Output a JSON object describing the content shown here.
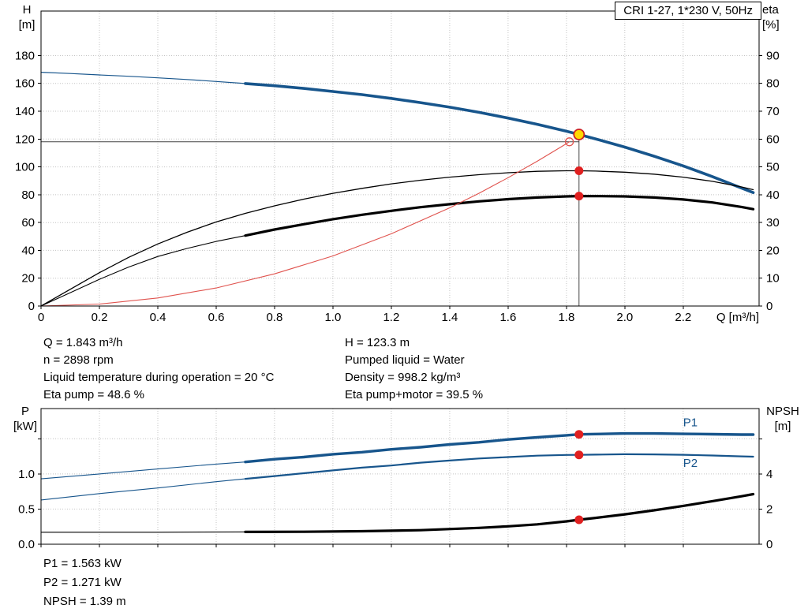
{
  "title": "CRI 1-27, 1*230 V, 50Hz",
  "operating_data": {
    "q": "Q = 1.843 m³/h",
    "n": "n = 2898 rpm",
    "temperature": "Liquid temperature during operation = 20 °C",
    "eta_pump": "Eta pump = 48.6 %",
    "h": "H = 123.3 m",
    "liquid": "Pumped liquid = Water",
    "density": "Density = 998.2 kg/m³",
    "eta_pump_motor": "Eta pump+motor = 39.5 %",
    "p1": "P1 = 1.563 kW",
    "p2": "P2 = 1.271 kW",
    "npsh": "NPSH = 1.39 m"
  },
  "chart_data": [
    {
      "type": "line",
      "title": "CRI 1-27, 1*230 V, 50Hz",
      "xlabel": "Q [m³/h]",
      "yaxis_left_label": [
        "H",
        "[m]"
      ],
      "yaxis_right_label": [
        "eta",
        "[%]"
      ],
      "xlim": [
        0,
        2.46
      ],
      "ylim_left": [
        0,
        212
      ],
      "ylim_right": [
        0,
        106
      ],
      "grid": true,
      "xticks": {
        "values": [
          0,
          0.2,
          0.4,
          0.6,
          0.8,
          1.0,
          1.2,
          1.4,
          1.6,
          1.8,
          2.0,
          2.2
        ],
        "labels": [
          "0",
          "0.2",
          "0.4",
          "0.6",
          "0.8",
          "1.0",
          "1.2",
          "1.4",
          "1.6",
          "1.8",
          "2.0",
          "2.2"
        ]
      },
      "yticks_left": {
        "values": [
          0,
          20,
          40,
          60,
          80,
          100,
          120,
          140,
          160,
          180
        ],
        "labels": [
          "0",
          "20",
          "40",
          "60",
          "80",
          "100",
          "120",
          "140",
          "160",
          "180"
        ]
      },
      "yticks_right": {
        "values": [
          0,
          10,
          20,
          30,
          40,
          50,
          60,
          70,
          80,
          90
        ],
        "labels": [
          "0",
          "10",
          "20",
          "30",
          "40",
          "50",
          "60",
          "70",
          "80",
          "90"
        ]
      },
      "series": [
        {
          "name": "pump-curve-low",
          "axis": "left",
          "color": "#17558c",
          "width": 1.2,
          "points": [
            [
              0,
              168
            ],
            [
              0.1,
              167.1
            ],
            [
              0.2,
              166.1
            ],
            [
              0.3,
              165.1
            ],
            [
              0.4,
              164
            ],
            [
              0.5,
              162.8
            ],
            [
              0.6,
              161.4
            ],
            [
              0.7,
              159.9
            ]
          ]
        },
        {
          "name": "pump-curve",
          "axis": "left",
          "color": "#17558c",
          "width": 3.6,
          "points": [
            [
              0.7,
              159.9
            ],
            [
              0.8,
              158.3
            ],
            [
              0.9,
              156.4
            ],
            [
              1,
              154.2
            ],
            [
              1.1,
              151.9
            ],
            [
              1.2,
              149.2
            ],
            [
              1.3,
              146.2
            ],
            [
              1.4,
              142.9
            ],
            [
              1.5,
              139.2
            ],
            [
              1.6,
              135.1
            ],
            [
              1.7,
              130.6
            ],
            [
              1.8,
              125.6
            ],
            [
              1.843,
              123.3
            ],
            [
              1.9,
              120.1
            ],
            [
              2,
              114.2
            ],
            [
              2.1,
              107.7
            ],
            [
              2.2,
              100.7
            ],
            [
              2.3,
              93
            ],
            [
              2.4,
              84.8
            ],
            [
              2.44,
              81.5
            ]
          ]
        },
        {
          "name": "eta-pump-curve",
          "axis": "right",
          "color": "#000000",
          "width": 1.3,
          "points": [
            [
              0,
              0
            ],
            [
              0.1,
              6
            ],
            [
              0.2,
              12
            ],
            [
              0.3,
              17.5
            ],
            [
              0.4,
              22.3
            ],
            [
              0.5,
              26.5
            ],
            [
              0.6,
              30.2
            ],
            [
              0.7,
              33.3
            ],
            [
              0.8,
              36
            ],
            [
              0.9,
              38.4
            ],
            [
              1,
              40.5
            ],
            [
              1.1,
              42.3
            ],
            [
              1.2,
              43.9
            ],
            [
              1.3,
              45.2
            ],
            [
              1.4,
              46.3
            ],
            [
              1.5,
              47.2
            ],
            [
              1.6,
              47.9
            ],
            [
              1.7,
              48.4
            ],
            [
              1.8,
              48.6
            ],
            [
              1.843,
              48.6
            ],
            [
              1.9,
              48.5
            ],
            [
              2,
              48.1
            ],
            [
              2.1,
              47.4
            ],
            [
              2.2,
              46.3
            ],
            [
              2.3,
              44.8
            ],
            [
              2.4,
              42.8
            ],
            [
              2.44,
              41.8
            ]
          ]
        },
        {
          "name": "eta-pump-motor-curve-low",
          "axis": "right",
          "color": "#000000",
          "width": 1.1,
          "points": [
            [
              0,
              0
            ],
            [
              0.1,
              4.8
            ],
            [
              0.2,
              9.6
            ],
            [
              0.3,
              14
            ],
            [
              0.4,
              17.8
            ],
            [
              0.5,
              20.7
            ],
            [
              0.6,
              23.2
            ],
            [
              0.7,
              25.3
            ]
          ]
        },
        {
          "name": "eta-pump-motor-curve",
          "axis": "right",
          "color": "#000000",
          "width": 3.2,
          "points": [
            [
              0.7,
              25.3
            ],
            [
              0.8,
              27.5
            ],
            [
              0.9,
              29.4
            ],
            [
              1,
              31.2
            ],
            [
              1.1,
              32.8
            ],
            [
              1.2,
              34.2
            ],
            [
              1.3,
              35.5
            ],
            [
              1.4,
              36.6
            ],
            [
              1.5,
              37.6
            ],
            [
              1.6,
              38.4
            ],
            [
              1.7,
              39
            ],
            [
              1.8,
              39.4
            ],
            [
              1.843,
              39.5
            ],
            [
              1.9,
              39.5
            ],
            [
              2,
              39.4
            ],
            [
              2.1,
              39
            ],
            [
              2.2,
              38.3
            ],
            [
              2.3,
              37.2
            ],
            [
              2.4,
              35.6
            ],
            [
              2.44,
              34.8
            ]
          ]
        },
        {
          "name": "system-curve",
          "axis": "left",
          "color": "#e0534e",
          "width": 1.1,
          "points": [
            [
              0,
              0
            ],
            [
              0.2,
              1.4
            ],
            [
              0.4,
              5.8
            ],
            [
              0.6,
              13
            ],
            [
              0.8,
              23.1
            ],
            [
              1,
              36
            ],
            [
              1.2,
              51.9
            ],
            [
              1.4,
              70.6
            ],
            [
              1.5,
              81
            ],
            [
              1.6,
              92.2
            ],
            [
              1.7,
              104.1
            ],
            [
              1.8,
              116.7
            ],
            [
              1.81,
              118
            ]
          ]
        }
      ],
      "guides": [
        {
          "type": "v",
          "x": 1.843,
          "y0": 0,
          "y1": 123.3,
          "axis": "left",
          "color": "#444444",
          "width": 1
        },
        {
          "type": "h",
          "y": 118,
          "x0": 0,
          "x1": 1.843,
          "axis": "left",
          "color": "#444444",
          "width": 1
        }
      ],
      "markers": [
        {
          "name": "requested-duty-point",
          "x": 1.81,
          "y": 118,
          "axis": "left",
          "r": 5,
          "fill": "none",
          "stroke": "#e0534e",
          "stroke_width": 1.3
        },
        {
          "name": "duty-point",
          "x": 1.843,
          "y": 123.3,
          "axis": "left",
          "r": 6.5,
          "fill": "#ffd800",
          "stroke": "#cc2020",
          "stroke_width": 1.8
        },
        {
          "name": "eta-pump-point",
          "x": 1.843,
          "y": 48.6,
          "axis": "right",
          "r": 5.5,
          "fill": "#e02020",
          "stroke": "none",
          "stroke_width": 0
        },
        {
          "name": "eta-pump-motor-point",
          "x": 1.843,
          "y": 39.5,
          "axis": "right",
          "r": 5.5,
          "fill": "#e02020",
          "stroke": "none",
          "stroke_width": 0
        }
      ],
      "labels": []
    },
    {
      "type": "line",
      "title": "",
      "xlabel": "",
      "yaxis_left_label": [
        "P",
        "[kW]"
      ],
      "yaxis_right_label": [
        "NPSH",
        "[m]"
      ],
      "xlim": [
        0,
        2.46
      ],
      "ylim_left": [
        0,
        1.93
      ],
      "ylim_right": [
        0,
        7.72
      ],
      "grid": true,
      "xticks": {
        "values": [
          0,
          0.2,
          0.4,
          0.6,
          0.8,
          1.0,
          1.2,
          1.4,
          1.6,
          1.8,
          2.0,
          2.2
        ],
        "labels": []
      },
      "yticks_left": {
        "values": [
          0,
          0.5,
          1.0,
          1.5
        ],
        "labels": [
          "0.0",
          "0.5",
          "1.0",
          ""
        ]
      },
      "yticks_right": {
        "values": [
          0,
          2,
          4,
          6
        ],
        "labels": [
          "0",
          "2",
          "4",
          ""
        ]
      },
      "series": [
        {
          "name": "p1-curve-low",
          "axis": "left",
          "color": "#17558c",
          "width": 1.1,
          "points": [
            [
              0,
              0.93
            ],
            [
              0.2,
              1
            ],
            [
              0.4,
              1.07
            ],
            [
              0.6,
              1.14
            ],
            [
              0.7,
              1.17
            ]
          ]
        },
        {
          "name": "p1-curve",
          "axis": "left",
          "color": "#17558c",
          "width": 3.4,
          "points": [
            [
              0.7,
              1.17
            ],
            [
              0.8,
              1.21
            ],
            [
              0.9,
              1.24
            ],
            [
              1,
              1.28
            ],
            [
              1.1,
              1.31
            ],
            [
              1.2,
              1.35
            ],
            [
              1.3,
              1.38
            ],
            [
              1.4,
              1.42
            ],
            [
              1.5,
              1.45
            ],
            [
              1.6,
              1.49
            ],
            [
              1.7,
              1.52
            ],
            [
              1.8,
              1.55
            ],
            [
              1.843,
              1.563
            ],
            [
              1.9,
              1.568
            ],
            [
              2,
              1.575
            ],
            [
              2.1,
              1.575
            ],
            [
              2.2,
              1.57
            ],
            [
              2.3,
              1.565
            ],
            [
              2.4,
              1.56
            ],
            [
              2.44,
              1.56
            ]
          ]
        },
        {
          "name": "p2-curve-low",
          "axis": "left",
          "color": "#17558c",
          "width": 1.1,
          "points": [
            [
              0,
              0.63
            ],
            [
              0.2,
              0.72
            ],
            [
              0.4,
              0.8
            ],
            [
              0.6,
              0.89
            ],
            [
              0.7,
              0.93
            ]
          ]
        },
        {
          "name": "p2-curve",
          "axis": "left",
          "color": "#17558c",
          "width": 2.2,
          "points": [
            [
              0.7,
              0.93
            ],
            [
              0.8,
              0.97
            ],
            [
              0.9,
              1.01
            ],
            [
              1,
              1.05
            ],
            [
              1.1,
              1.09
            ],
            [
              1.2,
              1.12
            ],
            [
              1.3,
              1.16
            ],
            [
              1.4,
              1.19
            ],
            [
              1.5,
              1.22
            ],
            [
              1.6,
              1.24
            ],
            [
              1.7,
              1.26
            ],
            [
              1.8,
              1.27
            ],
            [
              1.843,
              1.271
            ],
            [
              1.9,
              1.275
            ],
            [
              2,
              1.28
            ],
            [
              2.1,
              1.278
            ],
            [
              2.2,
              1.272
            ],
            [
              2.3,
              1.262
            ],
            [
              2.4,
              1.25
            ],
            [
              2.44,
              1.245
            ]
          ]
        },
        {
          "name": "npsh-curve-low",
          "axis": "right",
          "color": "#000000",
          "width": 1.1,
          "points": [
            [
              0,
              0.68
            ],
            [
              0.4,
              0.68
            ],
            [
              0.7,
              0.7
            ]
          ]
        },
        {
          "name": "npsh-curve",
          "axis": "right",
          "color": "#000000",
          "width": 3.2,
          "points": [
            [
              0.7,
              0.7
            ],
            [
              0.9,
              0.71
            ],
            [
              1.1,
              0.74
            ],
            [
              1.3,
              0.8
            ],
            [
              1.5,
              0.93
            ],
            [
              1.6,
              1.02
            ],
            [
              1.7,
              1.13
            ],
            [
              1.8,
              1.3
            ],
            [
              1.843,
              1.39
            ],
            [
              1.9,
              1.5
            ],
            [
              2,
              1.7
            ],
            [
              2.1,
              1.93
            ],
            [
              2.2,
              2.18
            ],
            [
              2.3,
              2.45
            ],
            [
              2.4,
              2.73
            ],
            [
              2.44,
              2.85
            ]
          ]
        }
      ],
      "guides": [],
      "markers": [
        {
          "name": "p1-point",
          "x": 1.843,
          "y": 1.563,
          "axis": "left",
          "r": 5.5,
          "fill": "#e02020",
          "stroke": "none",
          "stroke_width": 0
        },
        {
          "name": "p2-point",
          "x": 1.843,
          "y": 1.271,
          "axis": "left",
          "r": 5.5,
          "fill": "#e02020",
          "stroke": "none",
          "stroke_width": 0
        },
        {
          "name": "npsh-point",
          "x": 1.843,
          "y": 1.39,
          "axis": "right",
          "r": 5.5,
          "fill": "#e02020",
          "stroke": "none",
          "stroke_width": 0
        }
      ],
      "labels": [
        {
          "text": "P1",
          "x": 2.2,
          "y": 1.68,
          "axis": "left",
          "color": "#17558c"
        },
        {
          "text": "P2",
          "x": 2.2,
          "y": 1.1,
          "axis": "left",
          "color": "#17558c"
        }
      ]
    }
  ]
}
